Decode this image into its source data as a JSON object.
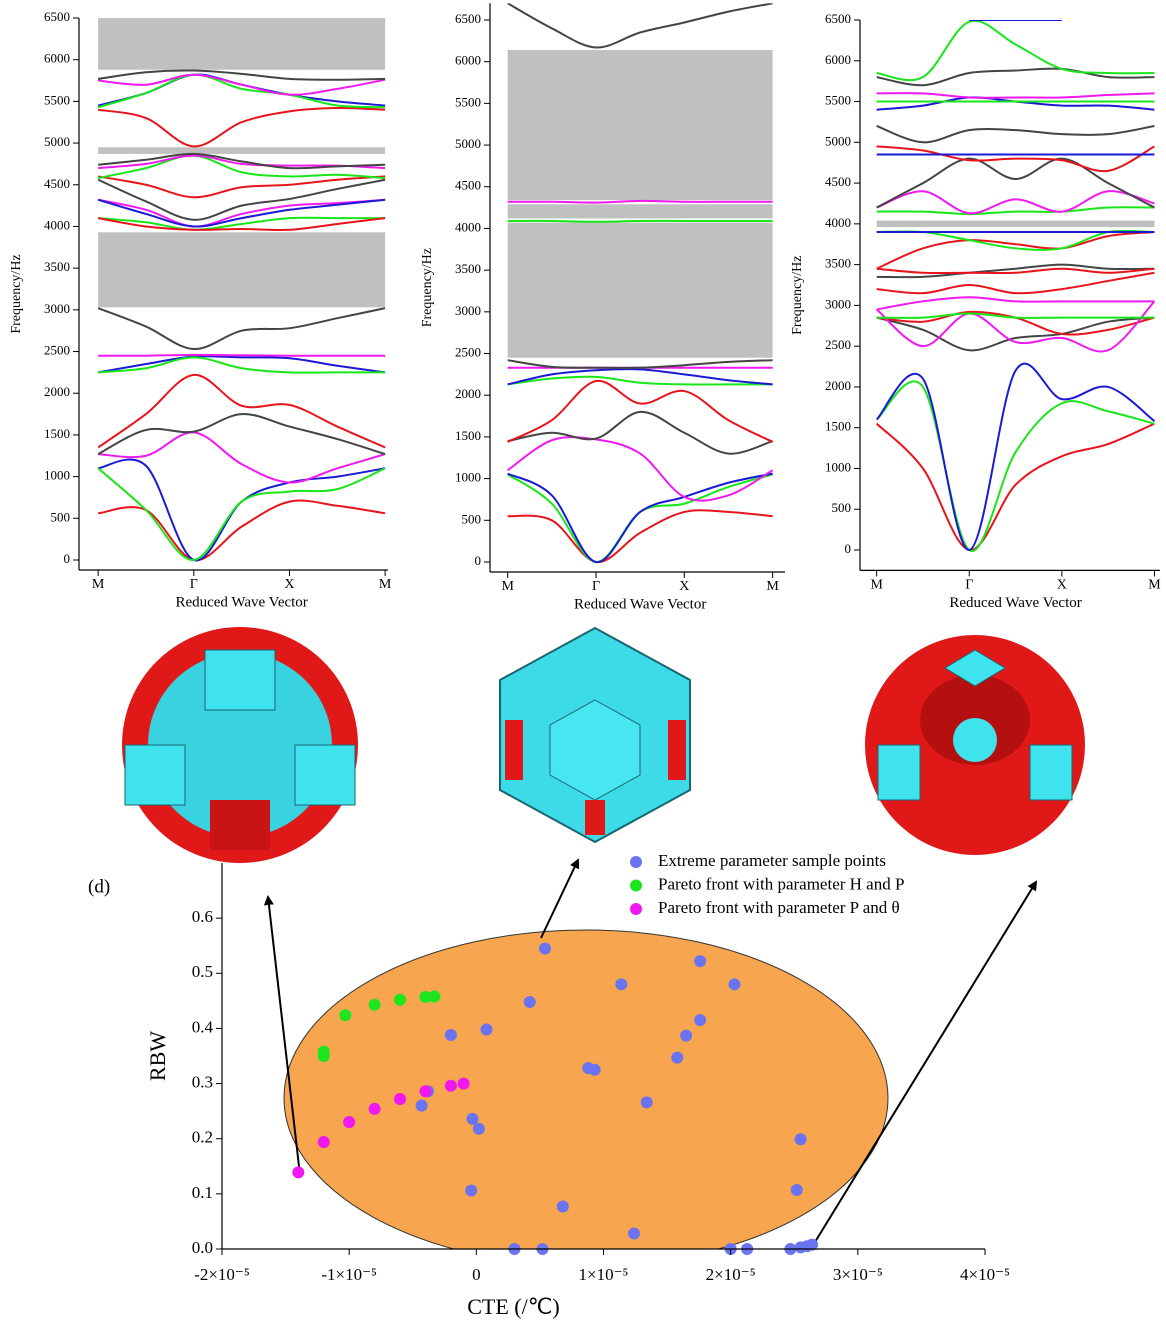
{
  "chart_data": [
    {
      "type": "line",
      "y_label": "Frequency/Hz",
      "x_label": "Reduced Wave Vector",
      "x": [
        0,
        0.5,
        1,
        1.5,
        2,
        2.5,
        3
      ],
      "xlim": [
        -0.2,
        3.03
      ],
      "xticks": [
        {
          "value": 0,
          "label": "M"
        },
        {
          "value": 1,
          "label": "Γ"
        },
        {
          "value": 2,
          "label": "X"
        },
        {
          "value": 3,
          "label": "M"
        }
      ],
      "ylim": [
        -120,
        6500
      ],
      "yticks": [
        0,
        500,
        1000,
        1500,
        2000,
        2500,
        3000,
        3500,
        4000,
        4500,
        5000,
        5500,
        6000,
        6500
      ],
      "bandgaps": [
        [
          3030,
          3930
        ],
        [
          4870,
          4950
        ],
        [
          5880,
          6500
        ]
      ],
      "bandgap_color": "#c0c0c0",
      "series": [
        {
          "color": "#e8141b",
          "values": [
            560,
            600,
            0,
            400,
            700,
            650,
            560
          ]
        },
        {
          "color": "#1a1ad6",
          "values": [
            1100,
            1130,
            0,
            700,
            930,
            1000,
            1100
          ]
        },
        {
          "color": "#19e619",
          "values": [
            1100,
            600,
            0,
            700,
            820,
            850,
            1100
          ]
        },
        {
          "color": "#f019f0",
          "values": [
            1270,
            1250,
            1530,
            1150,
            930,
            1100,
            1270
          ]
        },
        {
          "color": "#444444",
          "values": [
            1270,
            1560,
            1540,
            1750,
            1600,
            1450,
            1270
          ]
        },
        {
          "color": "#e8141b",
          "values": [
            1350,
            1750,
            2220,
            1850,
            1860,
            1600,
            1350
          ]
        },
        {
          "color": "#1a1ad6",
          "values": [
            2250,
            2350,
            2440,
            2430,
            2420,
            2330,
            2250
          ]
        },
        {
          "color": "#19e619",
          "values": [
            2250,
            2300,
            2430,
            2300,
            2250,
            2250,
            2250
          ]
        },
        {
          "color": "#f019f0",
          "values": [
            2450,
            2450,
            2460,
            2455,
            2450,
            2450,
            2450
          ]
        },
        {
          "color": "#444444",
          "values": [
            3020,
            2800,
            2530,
            2750,
            2780,
            2900,
            3020
          ]
        },
        {
          "color": "#19e619",
          "values": [
            4100,
            4050,
            3960,
            4030,
            4100,
            4100,
            4100
          ]
        },
        {
          "color": "#e8141b",
          "values": [
            4100,
            4000,
            3960,
            3970,
            3960,
            4030,
            4100
          ]
        },
        {
          "color": "#f019f0",
          "values": [
            4320,
            4200,
            4000,
            4150,
            4250,
            4280,
            4320
          ]
        },
        {
          "color": "#1a1ad6",
          "values": [
            4320,
            4150,
            4000,
            4100,
            4200,
            4260,
            4320
          ]
        },
        {
          "color": "#444444",
          "values": [
            4560,
            4300,
            4080,
            4250,
            4330,
            4450,
            4560
          ]
        },
        {
          "color": "#e8141b",
          "values": [
            4600,
            4500,
            4350,
            4470,
            4500,
            4560,
            4600
          ]
        },
        {
          "color": "#19e619",
          "values": [
            4580,
            4700,
            4850,
            4650,
            4600,
            4620,
            4580
          ]
        },
        {
          "color": "#f019f0",
          "values": [
            4700,
            4750,
            4850,
            4750,
            4730,
            4730,
            4700
          ]
        },
        {
          "color": "#444444",
          "values": [
            4740,
            4800,
            4870,
            4780,
            4700,
            4720,
            4740
          ]
        },
        {
          "color": "#e8141b",
          "values": [
            5400,
            5300,
            4960,
            5250,
            5380,
            5420,
            5400
          ]
        },
        {
          "color": "#1a1ad6",
          "values": [
            5450,
            5600,
            5820,
            5700,
            5580,
            5500,
            5450
          ]
        },
        {
          "color": "#19e619",
          "values": [
            5430,
            5600,
            5820,
            5650,
            5580,
            5450,
            5430
          ]
        },
        {
          "color": "#f019f0",
          "values": [
            5750,
            5700,
            5820,
            5700,
            5580,
            5650,
            5760
          ]
        },
        {
          "color": "#444444",
          "values": [
            5770,
            5850,
            5870,
            5830,
            5770,
            5760,
            5770
          ]
        }
      ]
    },
    {
      "type": "line",
      "y_label": "Frequency/Hz",
      "x_label": "Reduced Wave Vector",
      "x": [
        0,
        0.5,
        1,
        1.5,
        2,
        2.5,
        3
      ],
      "xlim": [
        -0.2,
        3.14
      ],
      "xticks": [
        {
          "value": 0,
          "label": "M"
        },
        {
          "value": 1,
          "label": "Γ"
        },
        {
          "value": 2,
          "label": "X"
        },
        {
          "value": 3,
          "label": "M"
        }
      ],
      "ylim": [
        -120,
        6700
      ],
      "yticks": [
        0,
        500,
        1000,
        1500,
        2000,
        2500,
        3000,
        3500,
        4000,
        4500,
        5000,
        5500,
        6000,
        6500
      ],
      "bandgaps": [
        [
          2450,
          4070
        ],
        [
          4120,
          4290
        ],
        [
          4340,
          6140
        ]
      ],
      "bandgap_color": "#c0c0c0",
      "series": [
        {
          "color": "#e8141b",
          "values": [
            550,
            500,
            0,
            350,
            600,
            600,
            550
          ]
        },
        {
          "color": "#19e619",
          "values": [
            1050,
            700,
            0,
            600,
            700,
            900,
            1050
          ]
        },
        {
          "color": "#1a1ad6",
          "values": [
            1060,
            800,
            0,
            600,
            780,
            950,
            1060
          ]
        },
        {
          "color": "#f019f0",
          "values": [
            1100,
            1460,
            1470,
            1300,
            780,
            800,
            1100
          ]
        },
        {
          "color": "#444444",
          "values": [
            1450,
            1550,
            1480,
            1800,
            1550,
            1300,
            1450
          ]
        },
        {
          "color": "#e8141b",
          "values": [
            1440,
            1700,
            2170,
            1900,
            2050,
            1700,
            1440
          ]
        },
        {
          "color": "#19e619",
          "values": [
            2130,
            2200,
            2220,
            2150,
            2130,
            2130,
            2130
          ]
        },
        {
          "color": "#1a1ad6",
          "values": [
            2130,
            2250,
            2300,
            2310,
            2250,
            2180,
            2130
          ]
        },
        {
          "color": "#f019f0",
          "values": [
            2330,
            2330,
            2330,
            2330,
            2330,
            2330,
            2330
          ]
        },
        {
          "color": "#444444",
          "values": [
            2420,
            2340,
            2330,
            2330,
            2360,
            2400,
            2420
          ]
        },
        {
          "color": "#19e619",
          "values": [
            4090,
            4090,
            4080,
            4090,
            4090,
            4090,
            4090
          ]
        },
        {
          "color": "#f019f0",
          "values": [
            4320,
            4320,
            4310,
            4330,
            4320,
            4320,
            4320
          ]
        },
        {
          "color": "#444444",
          "values": [
            6700,
            6400,
            6170,
            6350,
            6470,
            6600,
            6700
          ]
        }
      ]
    },
    {
      "type": "line",
      "y_label": "Frequency/Hz",
      "x_label": "Reduced Wave Vector",
      "x": [
        0,
        0.5,
        1,
        1.5,
        2,
        2.5,
        3
      ],
      "xlim": [
        -0.18,
        3.06
      ],
      "xticks": [
        {
          "value": 0,
          "label": "M"
        },
        {
          "value": 1,
          "label": "Γ"
        },
        {
          "value": 2,
          "label": "X"
        },
        {
          "value": 3,
          "label": "M"
        }
      ],
      "ylim": [
        -250,
        6500
      ],
      "yticks": [
        0,
        500,
        1000,
        1500,
        2000,
        2500,
        3000,
        3500,
        4000,
        4500,
        5000,
        5500,
        6000,
        6500
      ],
      "bandgaps": [
        [
          3960,
          4040
        ]
      ],
      "bandgap_color": "#c0c0c0",
      "series": [
        {
          "color": "#e8141b",
          "values": [
            1550,
            1000,
            0,
            800,
            1150,
            1300,
            1550
          ]
        },
        {
          "color": "#19e619",
          "values": [
            1600,
            2000,
            0,
            1200,
            1800,
            1700,
            1550
          ]
        },
        {
          "color": "#1a1ad6",
          "values": [
            1600,
            2100,
            0,
            2200,
            1850,
            2000,
            1580
          ]
        },
        {
          "color": "#444444",
          "values": [
            2850,
            2700,
            2450,
            2600,
            2650,
            2800,
            2850
          ]
        },
        {
          "color": "#e8141b",
          "values": [
            2850,
            2800,
            2920,
            2850,
            2650,
            2700,
            2850
          ]
        },
        {
          "color": "#f019f0",
          "values": [
            2950,
            2500,
            2900,
            2550,
            2600,
            2450,
            3050
          ]
        },
        {
          "color": "#19e619",
          "values": [
            2850,
            2850,
            2900,
            2850,
            2850,
            2850,
            2850
          ]
        },
        {
          "color": "#f019f0",
          "values": [
            2950,
            3050,
            3100,
            3050,
            3050,
            3050,
            3050
          ]
        },
        {
          "color": "#e8141b",
          "values": [
            3200,
            3150,
            3250,
            3150,
            3200,
            3300,
            3400
          ]
        },
        {
          "color": "#444444",
          "values": [
            3350,
            3350,
            3400,
            3450,
            3500,
            3450,
            3450
          ]
        },
        {
          "color": "#e8141b",
          "values": [
            3450,
            3400,
            3400,
            3400,
            3450,
            3400,
            3450
          ]
        },
        {
          "color": "#e8141b",
          "values": [
            3450,
            3700,
            3800,
            3750,
            3700,
            3850,
            3900
          ]
        },
        {
          "color": "#19e619",
          "values": [
            3900,
            3900,
            3800,
            3700,
            3700,
            3900,
            3900
          ]
        },
        {
          "color": "#1a1ad6",
          "values": [
            3900,
            3900,
            3900,
            3900,
            3900,
            3900,
            3900
          ]
        },
        {
          "color": "#19e619",
          "values": [
            4150,
            4150,
            4120,
            4150,
            4150,
            4200,
            4200
          ]
        },
        {
          "color": "#f019f0",
          "values": [
            4200,
            4400,
            4130,
            4300,
            4150,
            4400,
            4250
          ]
        },
        {
          "color": "#444444",
          "values": [
            4200,
            4500,
            4800,
            4550,
            4800,
            4500,
            4200
          ]
        },
        {
          "color": "#e8141b",
          "values": [
            4950,
            4900,
            4780,
            4800,
            4780,
            4650,
            4950
          ]
        },
        {
          "color": "#1a1ad6",
          "values": [
            4850,
            4850,
            4850,
            4850,
            4850,
            4850,
            4850
          ]
        },
        {
          "color": "#444444",
          "values": [
            5200,
            5000,
            5150,
            5150,
            5100,
            5100,
            5200
          ]
        },
        {
          "color": "#1a1ad6",
          "values": [
            5400,
            5450,
            5550,
            5500,
            5450,
            5450,
            5400
          ]
        },
        {
          "color": "#19e619",
          "values": [
            5500,
            5500,
            5500,
            5500,
            5500,
            5500,
            5500
          ]
        },
        {
          "color": "#f019f0",
          "values": [
            5600,
            5600,
            5550,
            5550,
            5550,
            5580,
            5600
          ]
        },
        {
          "color": "#444444",
          "values": [
            5800,
            5700,
            5850,
            5880,
            5900,
            5800,
            5800
          ]
        },
        {
          "color": "#19e619",
          "values": [
            5850,
            5800,
            6480,
            6200,
            5900,
            5850,
            5850
          ]
        },
        {
          "color": "#1a1ad6",
          "values": [
            null,
            null,
            6500,
            6500,
            6500,
            null,
            null
          ]
        }
      ]
    },
    {
      "type": "scatter",
      "panel_label": "(d)",
      "y_label": "RBW",
      "x_label": "CTE (/℃)",
      "xlim": [
        -2e-05,
        4e-05
      ],
      "xticks": [
        {
          "value": -2e-05,
          "label": "-2×10⁻⁵"
        },
        {
          "value": -1e-05,
          "label": "-1×10⁻⁵"
        },
        0,
        {
          "value": 1e-05,
          "label": "1×10⁻⁵"
        },
        {
          "value": 2e-05,
          "label": "2×10⁻⁵"
        },
        {
          "value": 3e-05,
          "label": "3×10⁻⁵"
        },
        {
          "value": 4e-05,
          "label": "4×10⁻⁵"
        }
      ],
      "ylim": [
        0,
        0.7
      ],
      "yticks": [
        {
          "value": 0,
          "label": "0.0"
        },
        0.1,
        0.2,
        0.3,
        0.4,
        0.5,
        0.6
      ],
      "legend": "upper right",
      "series": [
        {
          "name": "Extreme parameter sample points",
          "color": "#6b74f0",
          "x": [
            5.4e-06,
            4.2e-06,
            1.14e-05,
            1.76e-05,
            2.03e-05,
            1.76e-05,
            1.65e-05,
            1.58e-05,
            8.8e-06,
            9.3e-06,
            1.34e-05,
            8e-07,
            -2e-06,
            -3.8e-06,
            -4.3e-06,
            -3e-07,
            2e-07,
            -4e-07,
            6.8e-06,
            1.24e-05,
            2.55e-05,
            2.52e-05,
            3e-06,
            5.2e-06,
            2e-05,
            2.13e-05,
            2.47e-05,
            2.55e-05,
            2.6e-05,
            2.64e-05
          ],
          "values": [
            0.545,
            0.448,
            0.48,
            0.522,
            0.48,
            0.415,
            0.387,
            0.347,
            0.328,
            0.325,
            0.266,
            0.398,
            0.388,
            0.286,
            0.26,
            0.236,
            0.218,
            0.106,
            0.077,
            0.028,
            0.199,
            0.107,
            0,
            0,
            0,
            0,
            0,
            0.003,
            0.005,
            0.008
          ]
        },
        {
          "name": "Pareto front with parameter H and P",
          "color": "#1ee61e",
          "x": [
            -1.2e-05,
            -1.2e-05,
            -1.03e-05,
            -8e-06,
            -6e-06,
            -4e-06,
            -3.3e-06
          ],
          "values": [
            0.35,
            0.358,
            0.424,
            0.443,
            0.452,
            0.457,
            0.458
          ]
        },
        {
          "name": "Pareto front with parameter P and θ",
          "color": "#f018f0",
          "x": [
            -1.4e-05,
            -1.2e-05,
            -1e-05,
            -8e-06,
            -6e-06,
            -4e-06,
            -2e-06,
            -1e-06
          ],
          "values": [
            0.139,
            0.194,
            0.23,
            0.254,
            0.272,
            0.286,
            0.296,
            0.3
          ]
        }
      ]
    }
  ]
}
